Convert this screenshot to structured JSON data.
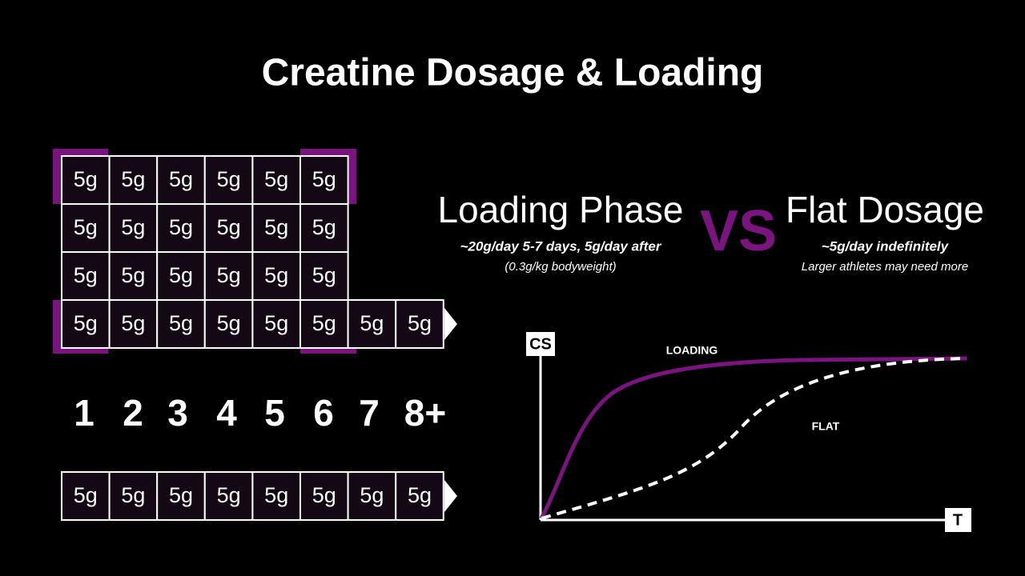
{
  "header": {
    "title": "Creatine Dosage & Loading"
  },
  "loading_grid": {
    "rows": [
      [
        "5g",
        "5g",
        "5g",
        "5g",
        "5g",
        "5g"
      ],
      [
        "5g",
        "5g",
        "5g",
        "5g",
        "5g",
        "5g"
      ],
      [
        "5g",
        "5g",
        "5g",
        "5g",
        "5g",
        "5g"
      ],
      [
        "5g",
        "5g",
        "5g",
        "5g",
        "5g",
        "5g",
        "5g",
        "5g"
      ]
    ]
  },
  "days": [
    "1",
    "2",
    "3",
    "4",
    "5",
    "6",
    "7",
    "8+"
  ],
  "flat_row": [
    "5g",
    "5g",
    "5g",
    "5g",
    "5g",
    "5g",
    "5g",
    "5g"
  ],
  "loading_phase": {
    "title": "Loading Phase",
    "dose": "~20g/day 5-7 days, 5g/day after",
    "note": "(0.3g/kg bodyweight)"
  },
  "versus": "VS",
  "flat_dosage": {
    "title": "Flat Dosage",
    "dose": "~5g/day indefinitely",
    "note": "Larger athletes may need more"
  },
  "graph": {
    "y_label": "CS",
    "x_label": "T",
    "curves": {
      "loading": "LOADING",
      "flat": "FLAT"
    }
  }
}
